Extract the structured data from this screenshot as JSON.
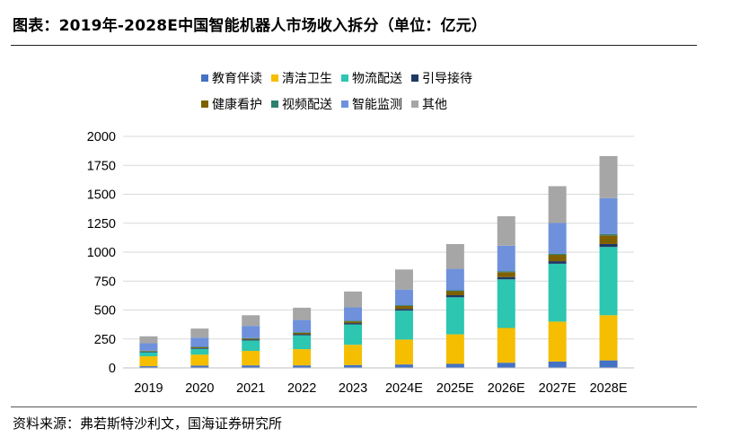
{
  "header": {
    "title": "图表：2019年-2028E中国智能机器人市场收入拆分（单位：亿元）"
  },
  "footer": {
    "source": "资料来源：弗若斯特沙利文，国海证券研究所"
  },
  "chart_data": {
    "type": "bar",
    "stacked": true,
    "categories": [
      "2019",
      "2020",
      "2021",
      "2022",
      "2023",
      "2024E",
      "2025E",
      "2026E",
      "2027E",
      "2028E"
    ],
    "series": [
      {
        "name": "教育伴读",
        "color": "#4472C4",
        "values": [
          15,
          20,
          22,
          22,
          25,
          30,
          35,
          45,
          55,
          65
        ]
      },
      {
        "name": "清洁卫生",
        "color": "#F5BE00",
        "values": [
          85,
          95,
          125,
          140,
          175,
          215,
          255,
          300,
          345,
          390
        ]
      },
      {
        "name": "物流配送",
        "color": "#2CC6B1",
        "values": [
          35,
          50,
          90,
          120,
          175,
          250,
          320,
          420,
          500,
          590
        ]
      },
      {
        "name": "引导接待",
        "color": "#1F3864",
        "values": [
          5,
          6,
          8,
          9,
          12,
          15,
          18,
          20,
          22,
          25
        ]
      },
      {
        "name": "健康看护",
        "color": "#7F6000",
        "values": [
          5,
          7,
          8,
          12,
          15,
          25,
          35,
          42,
          55,
          75
        ]
      },
      {
        "name": "视频配送",
        "color": "#2F7F6F",
        "values": [
          3,
          4,
          5,
          6,
          6,
          7,
          8,
          9,
          10,
          12
        ]
      },
      {
        "name": "智能监测",
        "color": "#6F91DC",
        "values": [
          65,
          80,
          105,
          105,
          115,
          135,
          185,
          220,
          265,
          310
        ]
      },
      {
        "name": "其他",
        "color": "#A6A6A6",
        "values": [
          60,
          78,
          92,
          106,
          137,
          173,
          214,
          254,
          318,
          363
        ]
      }
    ],
    "yticks": [
      "0",
      "250",
      "500",
      "750",
      "1000",
      "1250",
      "1500",
      "1750",
      "2000"
    ],
    "ylim": [
      0,
      2000
    ],
    "grid": true,
    "legend_position": "top"
  }
}
